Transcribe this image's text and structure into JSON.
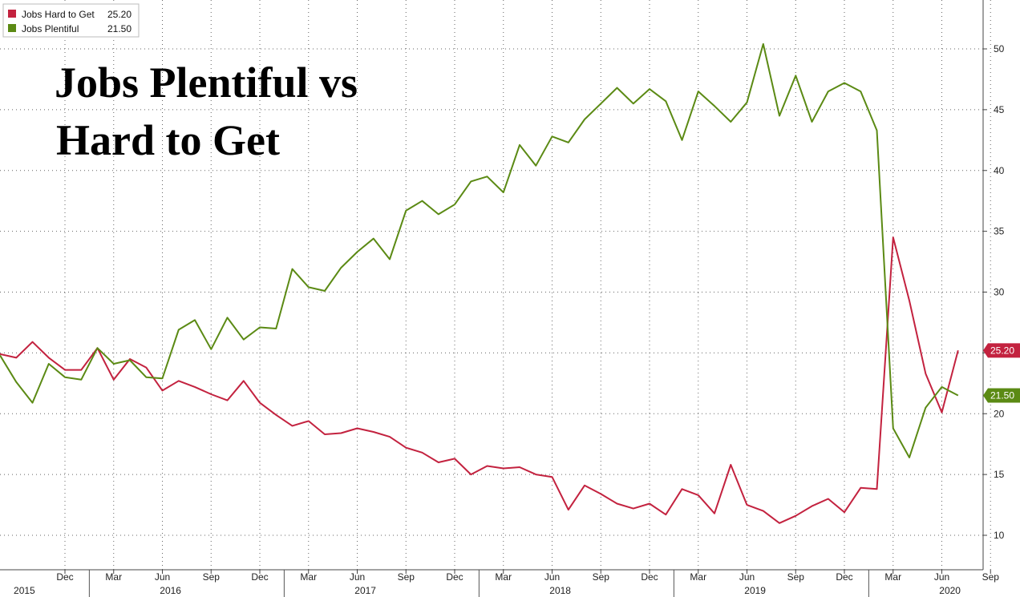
{
  "chart_data": {
    "type": "line",
    "title_lines": [
      "Jobs Plentiful vs",
      "Hard to Get"
    ],
    "xlabel": "",
    "ylabel": "",
    "ylim": [
      8.5,
      53
    ],
    "y_ticks": [
      10,
      15,
      20,
      25,
      30,
      35,
      40,
      45,
      50
    ],
    "grid": true,
    "legend_position": "top-left",
    "month_ticks": [
      {
        "label": "Dec",
        "index": 4
      },
      {
        "label": "Mar",
        "index": 7
      },
      {
        "label": "Jun",
        "index": 10
      },
      {
        "label": "Sep",
        "index": 13
      },
      {
        "label": "Dec",
        "index": 16
      },
      {
        "label": "Mar",
        "index": 19
      },
      {
        "label": "Jun",
        "index": 22
      },
      {
        "label": "Sep",
        "index": 25
      },
      {
        "label": "Dec",
        "index": 28
      },
      {
        "label": "Mar",
        "index": 31
      },
      {
        "label": "Jun",
        "index": 34
      },
      {
        "label": "Sep",
        "index": 37
      },
      {
        "label": "Dec",
        "index": 40
      },
      {
        "label": "Mar",
        "index": 43
      },
      {
        "label": "Jun",
        "index": 46
      },
      {
        "label": "Sep",
        "index": 49
      },
      {
        "label": "Dec",
        "index": 52
      },
      {
        "label": "Mar",
        "index": 55
      },
      {
        "label": "Jun",
        "index": 58
      },
      {
        "label": "Sep",
        "index": 61
      },
      {
        "label": "Dec",
        "index": 64
      },
      {
        "label": "Mar",
        "index": 67
      },
      {
        "label": "Jun",
        "index": 70
      },
      {
        "label": "Sep",
        "index": 73
      }
    ],
    "year_labels": [
      {
        "label": "2015",
        "index": 1.5
      },
      {
        "label": "2016",
        "index": 10.5
      },
      {
        "label": "2017",
        "index": 22.5
      },
      {
        "label": "2018",
        "index": 34.5
      },
      {
        "label": "2019",
        "index": 46.5
      },
      {
        "label": "2020",
        "index": 58.5
      }
    ],
    "year_separators": [
      5.5,
      17.5,
      29.5,
      41.5,
      53.5
    ],
    "series": [
      {
        "name": "Jobs Hard to Get",
        "last_value": "25.20",
        "color": "#c3223f",
        "values": [
          24.9,
          24.6,
          25.9,
          24.6,
          23.6,
          23.6,
          25.4,
          22.8,
          24.5,
          23.8,
          21.9,
          22.7,
          22.2,
          21.6,
          21.1,
          22.7,
          20.9,
          19.9,
          19.0,
          19.4,
          18.3,
          18.4,
          18.8,
          18.5,
          18.1,
          17.2,
          16.8,
          16.0,
          16.3,
          15.0,
          15.7,
          15.5,
          15.6,
          15.0,
          14.8,
          12.1,
          14.1,
          13.4,
          12.6,
          12.2,
          12.6,
          11.7,
          13.8,
          13.3,
          11.8,
          15.8,
          12.5,
          12.0,
          11.0,
          11.6,
          12.4,
          13.0,
          11.9,
          13.9,
          13.8,
          34.5,
          29.3,
          23.3,
          20.1,
          25.2
        ]
      },
      {
        "name": "Jobs Plentiful",
        "last_value": "21.50",
        "color": "#5b8a14",
        "values": [
          24.8,
          22.6,
          20.9,
          24.1,
          23.0,
          22.8,
          25.4,
          24.1,
          24.4,
          23.0,
          22.9,
          26.9,
          27.7,
          25.3,
          27.9,
          26.1,
          27.1,
          27.0,
          31.9,
          30.4,
          30.1,
          32.0,
          33.3,
          34.4,
          32.7,
          36.7,
          37.5,
          36.4,
          37.2,
          39.1,
          39.5,
          38.2,
          42.1,
          40.4,
          42.8,
          42.3,
          44.2,
          45.5,
          46.8,
          45.5,
          46.7,
          45.7,
          42.5,
          46.5,
          45.3,
          44.0,
          45.6,
          50.4,
          44.5,
          47.8,
          44.0,
          46.5,
          47.2,
          46.5,
          43.3,
          18.8,
          16.4,
          20.5,
          22.2,
          21.5
        ]
      }
    ]
  },
  "legend": {
    "hard_label": "Jobs Hard to Get",
    "hard_value": "25.20",
    "plentiful_label": "Jobs Plentiful",
    "plentiful_value": "21.50"
  }
}
